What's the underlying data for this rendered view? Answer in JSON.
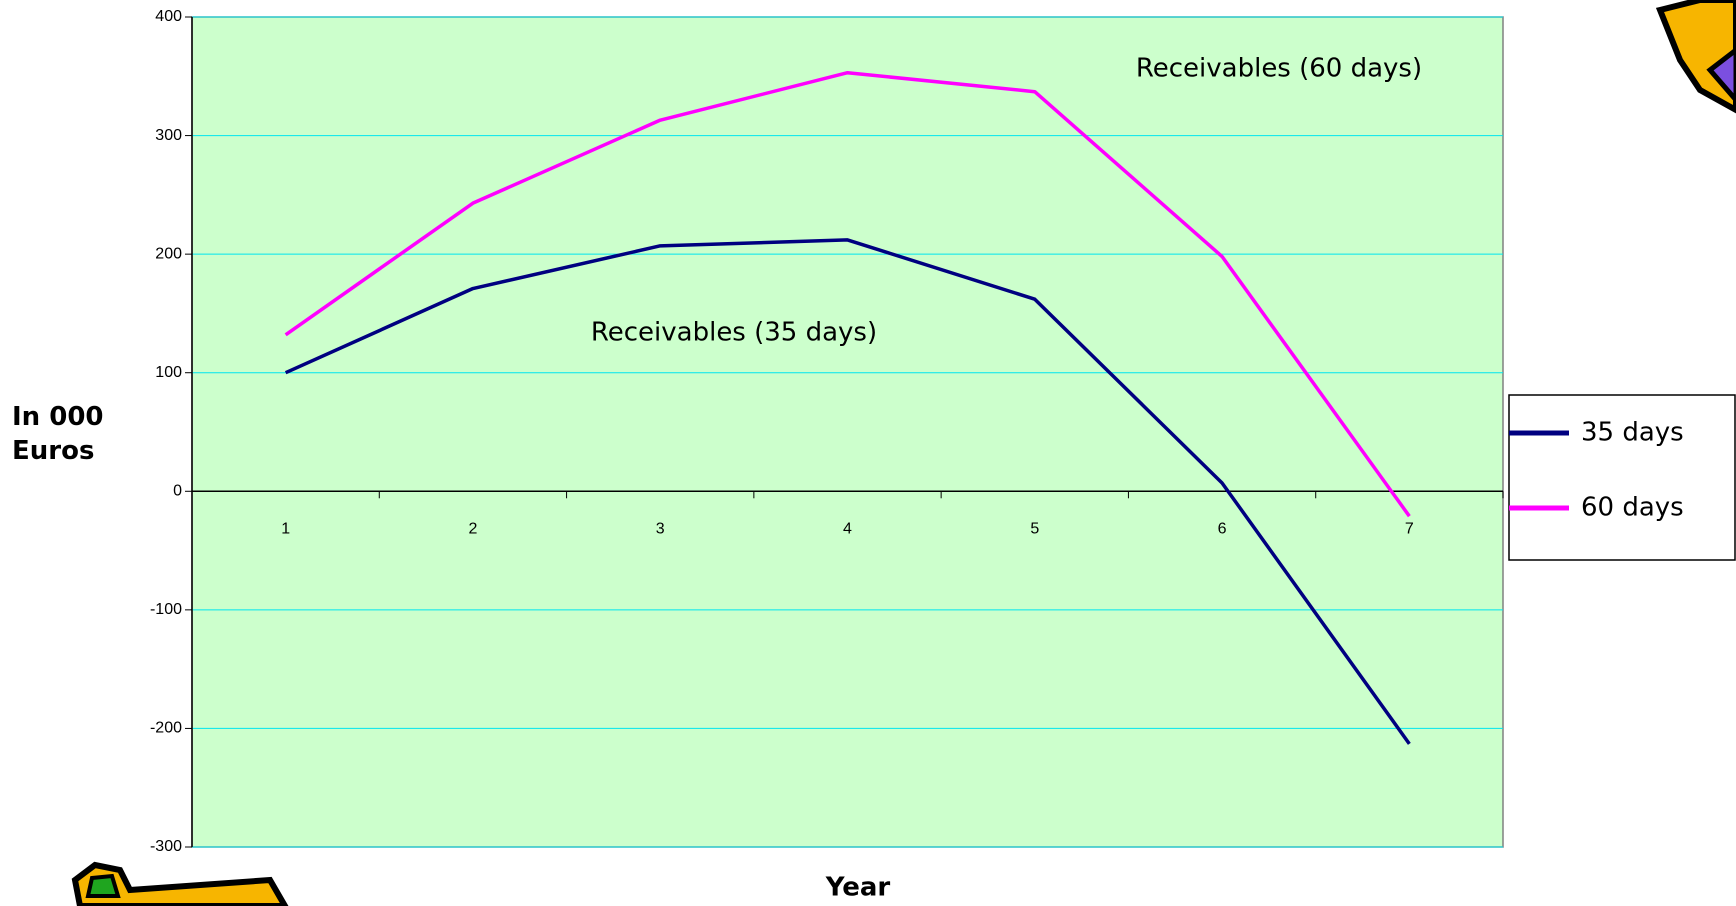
{
  "chart_data": {
    "type": "line",
    "categories": [
      "1",
      "2",
      "3",
      "4",
      "5",
      "6",
      "7"
    ],
    "series": [
      {
        "name": "35 days",
        "color": "#000080",
        "values": [
          100,
          171,
          207,
          212,
          162,
          7,
          -213
        ]
      },
      {
        "name": "60 days",
        "color": "#ff00ff",
        "values": [
          132,
          243,
          313,
          353,
          337,
          198,
          -21
        ]
      }
    ],
    "annotations": [
      "Receivables (60 days)",
      "Receivables (35 days)"
    ],
    "ylabel": "In 000 Euros",
    "xlabel": "Year",
    "ylim": [
      -300,
      400
    ],
    "yticks": [
      -300,
      -200,
      -100,
      0,
      100,
      200,
      300,
      400
    ],
    "grid": true,
    "legend": "right"
  }
}
